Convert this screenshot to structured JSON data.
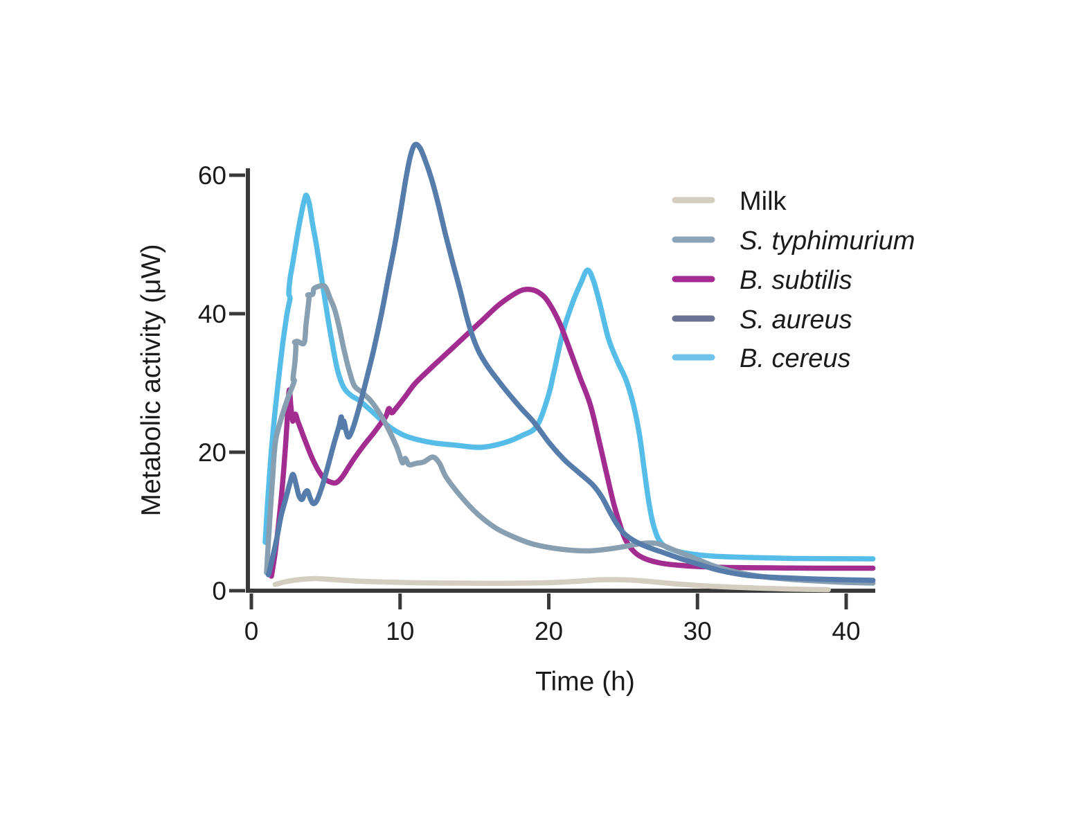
{
  "chart_data": {
    "type": "line",
    "title": "",
    "xlabel": "Time (h)",
    "ylabel": "Metabolic activity (μW)",
    "x_ticks": [
      0,
      10,
      20,
      30,
      40
    ],
    "y_ticks": [
      0,
      20,
      40,
      60
    ],
    "xlim": [
      0,
      42
    ],
    "ylim": [
      0,
      65
    ],
    "grid": false,
    "legend_position": "upper right",
    "axis_color": "#3a3a3a",
    "text_color": "#1a1a1a",
    "series": [
      {
        "name": "Milk",
        "italic": false,
        "color": "#d3cec0",
        "legend_color": "#d3cec0",
        "z": 0,
        "points": [
          [
            1.6,
            0.9
          ],
          [
            2.3,
            1.3
          ],
          [
            3.2,
            1.6
          ],
          [
            4.3,
            1.75
          ],
          [
            5.5,
            1.6
          ],
          [
            7,
            1.4
          ],
          [
            9,
            1.25
          ],
          [
            11,
            1.15
          ],
          [
            13.5,
            1.1
          ],
          [
            16,
            1.08
          ],
          [
            18.5,
            1.1
          ],
          [
            20.5,
            1.2
          ],
          [
            22.2,
            1.4
          ],
          [
            23.4,
            1.58
          ],
          [
            24.5,
            1.6
          ],
          [
            25.8,
            1.5
          ],
          [
            27.2,
            1.25
          ],
          [
            28.8,
            0.95
          ],
          [
            30.5,
            0.7
          ],
          [
            32.5,
            0.5
          ],
          [
            34.5,
            0.35
          ],
          [
            36.5,
            0.22
          ],
          [
            38.8,
            0.15
          ]
        ]
      },
      {
        "name": "S. typhimurium",
        "italic": true,
        "color": "#879fb0",
        "legend_color": "#8ca4b8",
        "z": 3,
        "points": [
          [
            1.02,
            2.6
          ],
          [
            1.2,
            9
          ],
          [
            1.42,
            16
          ],
          [
            1.62,
            21.5
          ],
          [
            2,
            24.8
          ],
          [
            2.45,
            27.8
          ],
          [
            2.88,
            30.2
          ],
          [
            2.8,
            30.6
          ],
          [
            2.93,
            33
          ],
          [
            2.99,
            35.5
          ],
          [
            2.91,
            35.9
          ],
          [
            3.12,
            36
          ],
          [
            3.55,
            35.8
          ],
          [
            3.68,
            38.5
          ],
          [
            3.88,
            42.3
          ],
          [
            3.8,
            42.7
          ],
          [
            4.12,
            42.8
          ],
          [
            4.2,
            43.6
          ],
          [
            4.45,
            43.9
          ],
          [
            4.75,
            44.05
          ],
          [
            5,
            43.8
          ],
          [
            5.3,
            42.2
          ],
          [
            5.6,
            40.6
          ],
          [
            5.9,
            38.1
          ],
          [
            6.2,
            35.1
          ],
          [
            6.5,
            32.4
          ],
          [
            6.9,
            29.7
          ],
          [
            7.4,
            28.7
          ],
          [
            8,
            27.5
          ],
          [
            8.6,
            25.7
          ],
          [
            9.2,
            23.4
          ],
          [
            9.8,
            20.6
          ],
          [
            10.15,
            18.5
          ],
          [
            10.35,
            19.1
          ],
          [
            10.6,
            18.2
          ],
          [
            11.1,
            18.4
          ],
          [
            11.6,
            18.6
          ],
          [
            12.2,
            19.3
          ],
          [
            12.65,
            18.4
          ],
          [
            13.1,
            16.4
          ],
          [
            14.1,
            13.6
          ],
          [
            15.2,
            11.1
          ],
          [
            16.4,
            9.1
          ],
          [
            17.6,
            7.8
          ],
          [
            19,
            6.7
          ],
          [
            20.8,
            6
          ],
          [
            22.7,
            5.75
          ],
          [
            24.6,
            6.2
          ],
          [
            26.2,
            6.8
          ],
          [
            27.3,
            6.8
          ],
          [
            28.5,
            5.8
          ],
          [
            29.8,
            4.7
          ],
          [
            31.2,
            3.5
          ],
          [
            32.8,
            2.6
          ],
          [
            34.5,
            2
          ],
          [
            36.5,
            1.6
          ],
          [
            38.5,
            1.35
          ],
          [
            40,
            1.2
          ],
          [
            41.8,
            1.1
          ]
        ]
      },
      {
        "name": "B. subtilis",
        "italic": true,
        "color": "#a32c90",
        "legend_color": "#a52c92",
        "z": 2,
        "points": [
          [
            1.35,
            2.1
          ],
          [
            1.6,
            5.5
          ],
          [
            1.85,
            10
          ],
          [
            2.1,
            15.5
          ],
          [
            2.3,
            21
          ],
          [
            2.45,
            26
          ],
          [
            2.55,
            29
          ],
          [
            2.66,
            26.6
          ],
          [
            2.78,
            24.5
          ],
          [
            2.95,
            25.5
          ],
          [
            3.12,
            24.5
          ],
          [
            3.35,
            23.2
          ],
          [
            3.7,
            21.2
          ],
          [
            4.1,
            19.1
          ],
          [
            4.5,
            17.4
          ],
          [
            4.9,
            16.2
          ],
          [
            5.3,
            15.7
          ],
          [
            5.7,
            15.6
          ],
          [
            6.1,
            16.4
          ],
          [
            6.55,
            17.9
          ],
          [
            7.05,
            19.5
          ],
          [
            7.6,
            21.1
          ],
          [
            8.2,
            22.7
          ],
          [
            8.75,
            24.3
          ],
          [
            9.05,
            25.2
          ],
          [
            9.25,
            26.3
          ],
          [
            9.45,
            25.7
          ],
          [
            9.75,
            26.4
          ],
          [
            10.3,
            27.9
          ],
          [
            11,
            29.9
          ],
          [
            11.9,
            31.8
          ],
          [
            12.8,
            33.6
          ],
          [
            13.8,
            35.6
          ],
          [
            14.8,
            37.6
          ],
          [
            15.7,
            39.4
          ],
          [
            16.6,
            41.2
          ],
          [
            17.5,
            42.6
          ],
          [
            18.2,
            43.4
          ],
          [
            18.75,
            43.5
          ],
          [
            19.3,
            43.1
          ],
          [
            19.9,
            41.9
          ],
          [
            20.7,
            38.8
          ],
          [
            21.4,
            34.9
          ],
          [
            22.1,
            30.8
          ],
          [
            22.8,
            26.8
          ],
          [
            23.4,
            21.5
          ],
          [
            23.9,
            16.8
          ],
          [
            24.4,
            12.3
          ],
          [
            24.85,
            9.1
          ],
          [
            25.2,
            7.2
          ],
          [
            25.8,
            5.5
          ],
          [
            26.5,
            4.6
          ],
          [
            27.5,
            4
          ],
          [
            28.6,
            3.7
          ],
          [
            30,
            3.5
          ],
          [
            32,
            3.35
          ],
          [
            35,
            3.3
          ],
          [
            38,
            3.25
          ],
          [
            41.8,
            3.25
          ]
        ]
      },
      {
        "name": "S. aureus",
        "italic": true,
        "color": "#567cac",
        "legend_color": "#6b7394",
        "z": 4,
        "points": [
          [
            1.15,
            2.3
          ],
          [
            1.45,
            5
          ],
          [
            1.75,
            8
          ],
          [
            2,
            10.8
          ],
          [
            2.3,
            13.2
          ],
          [
            2.6,
            15.6
          ],
          [
            2.8,
            16.8
          ],
          [
            3,
            15.4
          ],
          [
            3.2,
            13.7
          ],
          [
            3.42,
            13.2
          ],
          [
            3.6,
            14.1
          ],
          [
            3.78,
            14.4
          ],
          [
            3.95,
            13.4
          ],
          [
            4.15,
            12.6
          ],
          [
            4.4,
            13
          ],
          [
            4.75,
            15
          ],
          [
            5.15,
            18
          ],
          [
            5.55,
            21.2
          ],
          [
            5.9,
            23.8
          ],
          [
            6.05,
            25.1
          ],
          [
            6.12,
            23.6
          ],
          [
            6.22,
            24.5
          ],
          [
            6.38,
            23
          ],
          [
            6.55,
            22.2
          ],
          [
            6.85,
            23.6
          ],
          [
            7.25,
            26.5
          ],
          [
            7.75,
            30.6
          ],
          [
            8.25,
            35
          ],
          [
            8.75,
            40
          ],
          [
            9.25,
            45.6
          ],
          [
            9.65,
            50
          ],
          [
            10.05,
            55
          ],
          [
            10.4,
            59.6
          ],
          [
            10.7,
            62.8
          ],
          [
            11,
            64.4
          ],
          [
            11.35,
            63.9
          ],
          [
            11.75,
            61.8
          ],
          [
            12.15,
            59.2
          ],
          [
            12.55,
            56
          ],
          [
            13.05,
            51.5
          ],
          [
            13.55,
            47.3
          ],
          [
            14.05,
            43.3
          ],
          [
            14.5,
            39.4
          ],
          [
            14.9,
            36.6
          ],
          [
            15.35,
            34.3
          ],
          [
            15.95,
            32.2
          ],
          [
            16.65,
            30.2
          ],
          [
            17.4,
            28.2
          ],
          [
            18.2,
            26.2
          ],
          [
            19.05,
            24.2
          ],
          [
            20.05,
            21.3
          ],
          [
            21.05,
            18.9
          ],
          [
            22,
            17.1
          ],
          [
            22.95,
            15.3
          ],
          [
            23.55,
            13.6
          ],
          [
            24.05,
            11.6
          ],
          [
            24.55,
            9.7
          ],
          [
            25.05,
            8.3
          ],
          [
            25.75,
            7.2
          ],
          [
            26.65,
            6.3
          ],
          [
            27.85,
            5.4
          ],
          [
            29.05,
            4.5
          ],
          [
            30.25,
            3.7
          ],
          [
            31.55,
            2.9
          ],
          [
            33.05,
            2.3
          ],
          [
            34.55,
            2
          ],
          [
            36.55,
            1.8
          ],
          [
            38.55,
            1.65
          ],
          [
            41.8,
            1.5
          ]
        ]
      },
      {
        "name": "B. cereus",
        "italic": true,
        "color": "#55bde8",
        "legend_color": "#6fc3e8",
        "z": 1,
        "points": [
          [
            0.93,
            7
          ],
          [
            1.1,
            13
          ],
          [
            1.3,
            19
          ],
          [
            1.55,
            25
          ],
          [
            1.8,
            30
          ],
          [
            2.1,
            35.5
          ],
          [
            2.4,
            40
          ],
          [
            2.6,
            42.2
          ],
          [
            2.52,
            42.9
          ],
          [
            2.6,
            45
          ],
          [
            2.8,
            47.5
          ],
          [
            3.05,
            50.8
          ],
          [
            3.3,
            53.8
          ],
          [
            3.55,
            56.3
          ],
          [
            3.7,
            57.1
          ],
          [
            3.9,
            55.8
          ],
          [
            4.1,
            53.2
          ],
          [
            4.4,
            49.6
          ],
          [
            4.75,
            44.8
          ],
          [
            5.1,
            40
          ],
          [
            5.45,
            35.6
          ],
          [
            5.8,
            31.8
          ],
          [
            6.2,
            29.4
          ],
          [
            6.7,
            28.2
          ],
          [
            7.3,
            27.4
          ],
          [
            8.2,
            25.7
          ],
          [
            9.2,
            23.8
          ],
          [
            10.2,
            22.5
          ],
          [
            11.2,
            21.8
          ],
          [
            12.4,
            21.3
          ],
          [
            13.8,
            21
          ],
          [
            15.4,
            20.7
          ],
          [
            16.9,
            21.3
          ],
          [
            18.2,
            22.4
          ],
          [
            19.2,
            23.8
          ],
          [
            19.95,
            28
          ],
          [
            20.35,
            31.6
          ],
          [
            20.95,
            37.3
          ],
          [
            21.6,
            41.6
          ],
          [
            22.15,
            44.4
          ],
          [
            22.6,
            46.3
          ],
          [
            23,
            44.8
          ],
          [
            23.45,
            41.3
          ],
          [
            24,
            36.5
          ],
          [
            24.6,
            33.2
          ],
          [
            25.2,
            30.4
          ],
          [
            25.7,
            26.8
          ],
          [
            26.1,
            22.5
          ],
          [
            26.45,
            17
          ],
          [
            26.75,
            12.5
          ],
          [
            27.05,
            9.4
          ],
          [
            27.45,
            7.2
          ],
          [
            28.1,
            6.1
          ],
          [
            29.3,
            5.4
          ],
          [
            31,
            5
          ],
          [
            33.5,
            4.8
          ],
          [
            37,
            4.65
          ],
          [
            41.8,
            4.6
          ]
        ]
      }
    ]
  }
}
